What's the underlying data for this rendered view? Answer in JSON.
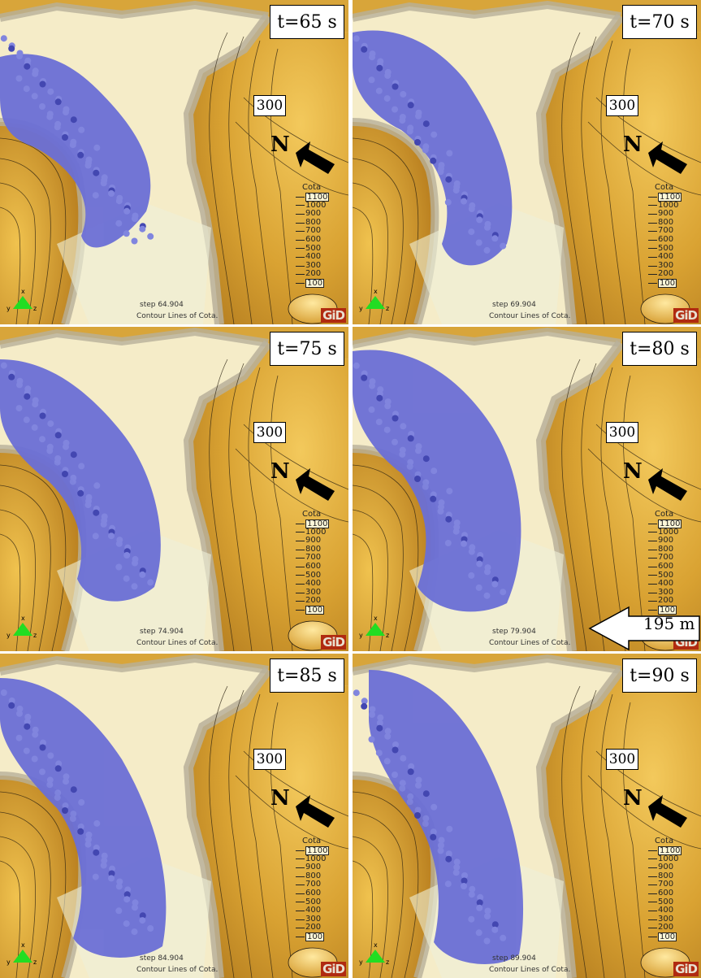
{
  "panels": [
    {
      "time_label": "t=65 s",
      "step": "step 64.904"
    },
    {
      "time_label": "t=70 s",
      "step": "step 69.904"
    },
    {
      "time_label": "t=75 s",
      "step": "step 74.904"
    },
    {
      "time_label": "t=80 s",
      "step": "step 79.904"
    },
    {
      "time_label": "t=85 s",
      "step": "step 84.904"
    },
    {
      "time_label": "t=90 s",
      "step": "step 89.904"
    }
  ],
  "elevation_label": "300",
  "north_label": "N",
  "legend": {
    "title": "Cota",
    "values": [
      "1100",
      "1000",
      "900",
      "800",
      "700",
      "600",
      "500",
      "400",
      "300",
      "200",
      "100"
    ]
  },
  "caption": "Contour Lines of Cota.",
  "logo": "GiD",
  "axis_labels": {
    "x": "x",
    "y": "y",
    "z": "z"
  },
  "distance_label": "195 m",
  "colors": {
    "flow": "#6b6fd6",
    "terrain_high": "#d9a838",
    "terrain_low": "#f3e9bf",
    "ridge": "#b8b09a"
  },
  "icons": [
    "north-arrow-icon",
    "axes-triad-icon",
    "distance-arrow-icon"
  ]
}
